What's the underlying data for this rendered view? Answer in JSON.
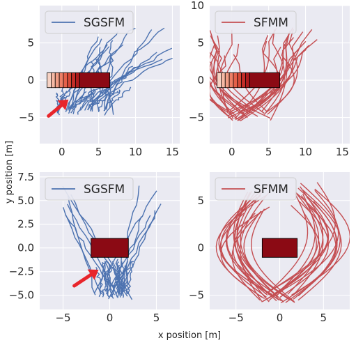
{
  "figure": {
    "xlabel": "x position [m]",
    "ylabel": "y position [m]"
  },
  "colors": {
    "sgsfm": "#4c72b0",
    "sfmm": "#c44e52",
    "obstacle": "#8b0a14",
    "arrow": "#e8252b",
    "axes_bg": "#eaeaf2",
    "grid": "#ffffff"
  },
  "chart_data": [
    {
      "type": "line",
      "legend": "SGSFM",
      "legend_position": "top-left",
      "xlim": [
        -3,
        16
      ],
      "ylim": [
        -8.5,
        10
      ],
      "xticks": [
        0,
        5,
        10,
        15
      ],
      "yticks": [
        -5,
        0,
        5
      ],
      "obstacle": {
        "x": [
          -2,
          6.5
        ],
        "y": [
          -1,
          1
        ]
      },
      "fade_trail": true,
      "arrow": {
        "from": [
          -1.8,
          -4.8
        ],
        "to": [
          0.9,
          -2.6
        ]
      },
      "trajectory_family": "diverging-right",
      "seed": 11
    },
    {
      "type": "line",
      "legend": "SFMM",
      "legend_position": "top-left",
      "xlim": [
        -3,
        16
      ],
      "ylim": [
        -8.5,
        10
      ],
      "xticks": [
        0,
        5,
        10,
        15
      ],
      "yticks": [
        -5,
        0,
        5,
        10
      ],
      "obstacle": {
        "x": [
          -2,
          6.5
        ],
        "y": [
          -1,
          1
        ]
      },
      "fade_trail": true,
      "trajectory_family": "around-obstacle-wide",
      "seed": 23
    },
    {
      "type": "line",
      "legend": "SGSFM",
      "legend_position": "top-left",
      "xlim": [
        -7.5,
        7.5
      ],
      "ylim": [
        -6.5,
        8
      ],
      "xticks": [
        -5,
        0,
        5
      ],
      "yticks": [
        -5.0,
        -2.5,
        0.0,
        2.5,
        5.0,
        7.5
      ],
      "ytick_labels": [
        "−5.0",
        "−2.5",
        "0.0",
        "2.5",
        "5.0",
        "7.5"
      ],
      "obstacle": {
        "x": [
          -2,
          2
        ],
        "y": [
          -1,
          1
        ]
      },
      "arrow": {
        "from": [
          -3.8,
          -4
        ],
        "to": [
          -1.2,
          -2.3
        ]
      },
      "trajectory_family": "funnel",
      "seed": 37
    },
    {
      "type": "line",
      "legend": "SFMM",
      "legend_position": "top-left",
      "xlim": [
        -8,
        8
      ],
      "ylim": [
        -6.5,
        8
      ],
      "xticks": [
        -5,
        0,
        5
      ],
      "yticks": [
        -5,
        0,
        5
      ],
      "obstacle": {
        "x": [
          -2,
          2
        ],
        "y": [
          -1,
          1
        ]
      },
      "trajectory_family": "around-obstacle",
      "seed": 53
    }
  ]
}
